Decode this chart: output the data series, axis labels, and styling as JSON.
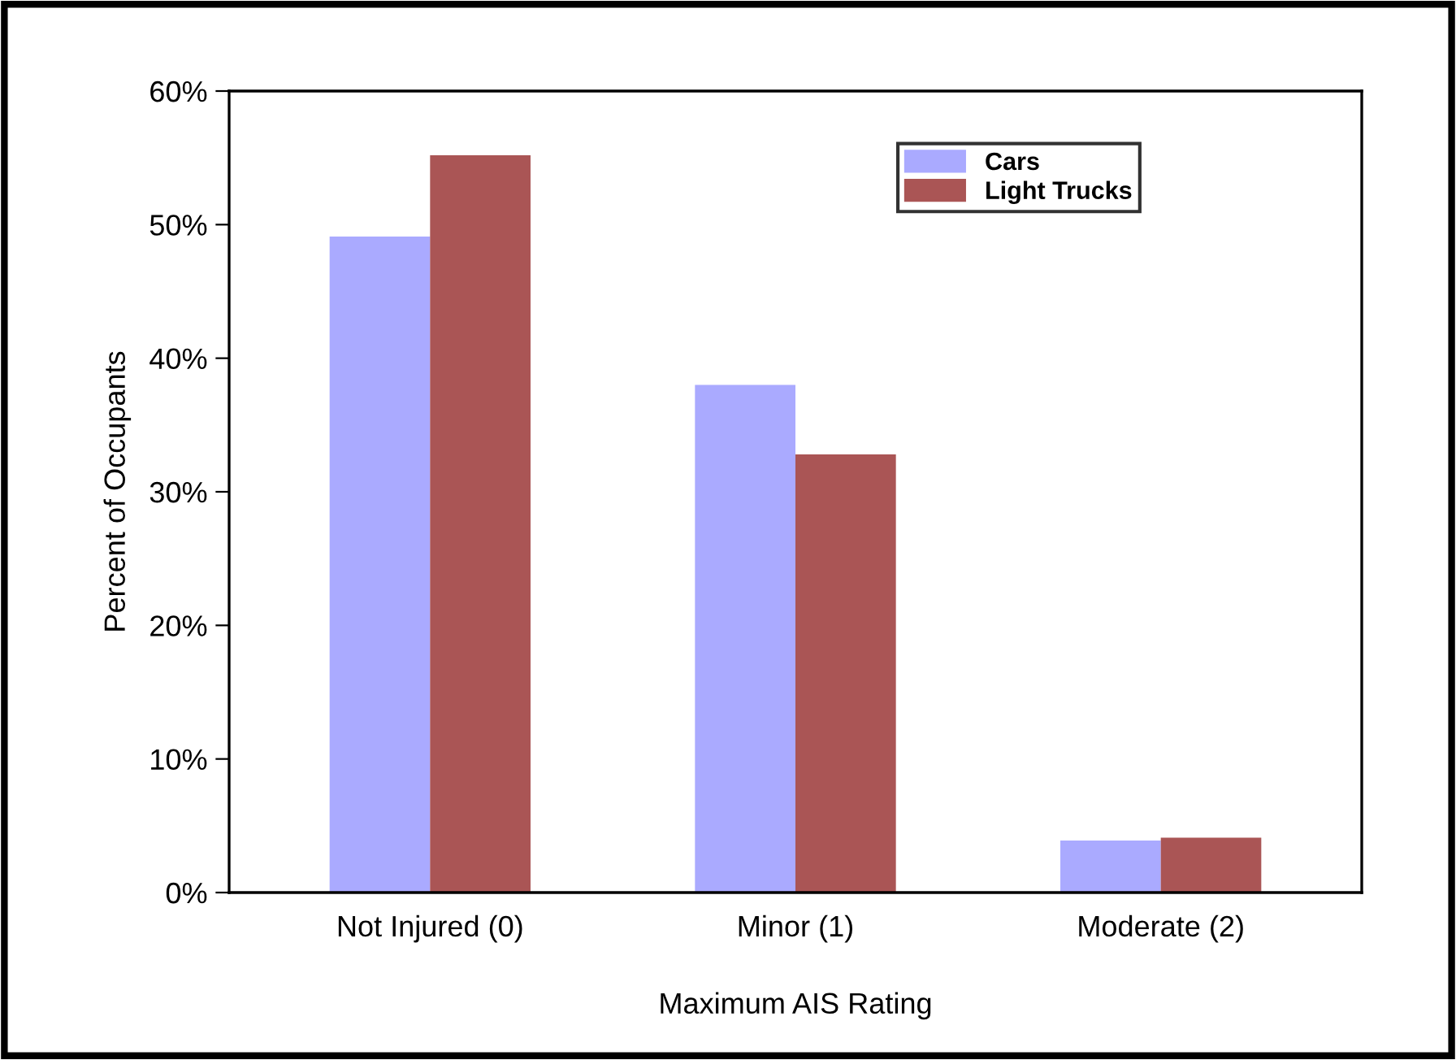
{
  "chart_data": {
    "type": "bar",
    "xlabel": "Maximum AIS Rating",
    "ylabel": "Percent of Occupants",
    "categories": [
      "Not Injured (0)",
      "Minor (1)",
      "Moderate (2)"
    ],
    "series": [
      {
        "name": "Cars",
        "color": "#aaaaff",
        "values": [
          49.1,
          38.0,
          3.9
        ]
      },
      {
        "name": "Light Trucks",
        "color": "#aa5555",
        "values": [
          55.2,
          32.8,
          4.1
        ]
      }
    ],
    "ylim": [
      0,
      60
    ],
    "yticks": [
      {
        "value": 0,
        "label": "0%"
      },
      {
        "value": 10,
        "label": "10%"
      },
      {
        "value": 20,
        "label": "20%"
      },
      {
        "value": 30,
        "label": "30%"
      },
      {
        "value": 40,
        "label": "40%"
      },
      {
        "value": 50,
        "label": "50%"
      },
      {
        "value": 60,
        "label": "60%"
      }
    ],
    "grid": false,
    "legend": "top right"
  }
}
